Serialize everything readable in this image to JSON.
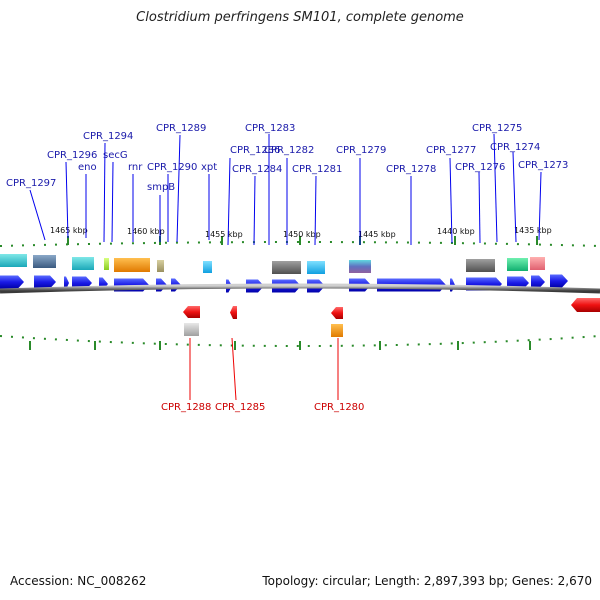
{
  "title": "Clostridium perfringens SM101, complete genome",
  "accession": "Accession: NC_008262",
  "summary": "Topology: circular; Length: 2,897,393 bp; Genes: 2,670",
  "colors": {
    "forward_gene": "#0000ee",
    "reverse_gene": "#ee0000",
    "forward_label": "#1a1aaa",
    "reverse_label": "#cc0000",
    "backbone": "#808080",
    "tick": "#2a8a2a"
  },
  "scale_labels": [
    "1465 kbp",
    "1460 kbp",
    "1455 kbp",
    "1450 kbp",
    "1445 kbp",
    "1440 kbp",
    "1435 kbp"
  ],
  "forward_gene_labels": [
    "CPR_1297",
    "CPR_1296",
    "eno",
    "CPR_1294",
    "secG",
    "rnr",
    "CPR_1290",
    "smpB",
    "CPR_1289",
    "xpt",
    "CPR_1286",
    "CPR_1284",
    "CPR_1283",
    "CPR_1282",
    "CPR_1281",
    "CPR_1279",
    "CPR_1278",
    "CPR_1277",
    "CPR_1276",
    "CPR_1275",
    "CPR_1274",
    "CPR_1273"
  ],
  "reverse_gene_labels": [
    "CPR_1288",
    "CPR_1285",
    "CPR_1280"
  ]
}
